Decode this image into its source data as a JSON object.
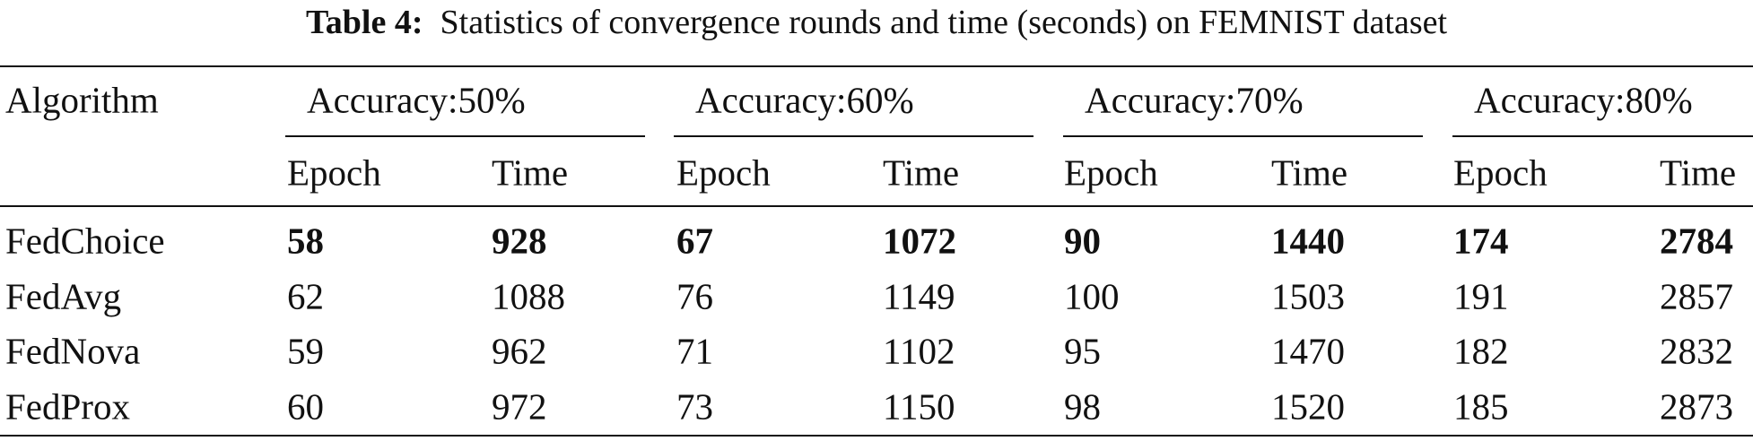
{
  "caption": {
    "label": "Table 4:",
    "text": "Statistics of convergence rounds and time (seconds) on FEMNIST dataset"
  },
  "table": {
    "header": {
      "first": "Algorithm",
      "groups": [
        "Accuracy:50%",
        "Accuracy:60%",
        "Accuracy:70%",
        "Accuracy:80%"
      ],
      "subheaders": [
        "Epoch",
        "Time",
        "Epoch",
        "Time",
        "Epoch",
        "Time",
        "Epoch",
        "Time"
      ]
    },
    "rows": [
      [
        "FedChoice",
        58,
        928,
        67,
        1072,
        90,
        1440,
        174,
        2784
      ],
      [
        "FedAvg",
        62,
        1088,
        76,
        1149,
        100,
        1503,
        191,
        2857
      ],
      [
        "FedNova",
        59,
        962,
        71,
        1102,
        95,
        1470,
        182,
        2832
      ],
      [
        "FedProx",
        60,
        972,
        73,
        1150,
        98,
        1520,
        185,
        2873
      ]
    ]
  }
}
